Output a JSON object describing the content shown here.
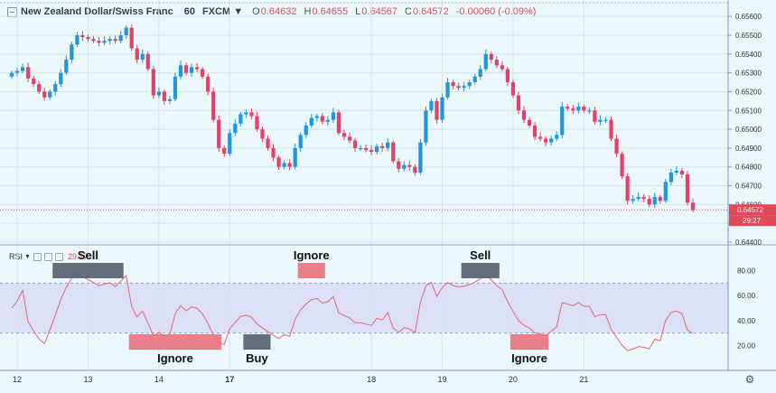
{
  "header": {
    "symbol": "New Zealand Dollar/Swiss Franc",
    "timeframe": "60",
    "exchange": "FXCM",
    "open_label": "O",
    "open": "0.64632",
    "high_label": "H",
    "high": "0.64655",
    "low_label": "L",
    "low": "0.64567",
    "close_label": "C",
    "close": "0.64572",
    "change": "-0.00060 (-0.09%)"
  },
  "rsi_panel": {
    "label": "RSI",
    "value": "29.17"
  },
  "colors": {
    "up": "#2196d8",
    "down": "#e0436a",
    "rsi_line": "#e96676",
    "rsi_band": "#d9dcf6",
    "sell_box": "#565c6b",
    "ignore_box": "#ec6f7d",
    "price_line": "#e04a5b"
  },
  "chart_data": [
    {
      "type": "candlestick",
      "title": "New Zealand Dollar/Swiss Franc",
      "x_ticks": [
        "12",
        "13",
        "14",
        "17",
        "18",
        "19",
        "20",
        "21"
      ],
      "y_ticks": [
        "0.65600",
        "0.65500",
        "0.65400",
        "0.65300",
        "0.65200",
        "0.65100",
        "0.65000",
        "0.64900",
        "0.64800",
        "0.64700",
        "0.64600",
        "0.64500",
        "0.64400"
      ],
      "ylim": [
        0.644,
        0.6562
      ],
      "grid": true,
      "last_price": "0.64572",
      "countdown": "29:27",
      "close_series": [
        0.653,
        0.6531,
        0.6533,
        0.6527,
        0.6524,
        0.652,
        0.6517,
        0.652,
        0.6524,
        0.653,
        0.6537,
        0.6545,
        0.655,
        0.6549,
        0.6548,
        0.6547,
        0.6546,
        0.6547,
        0.6548,
        0.6547,
        0.655,
        0.6554,
        0.6543,
        0.6537,
        0.654,
        0.6532,
        0.6518,
        0.652,
        0.6515,
        0.6516,
        0.6528,
        0.6534,
        0.653,
        0.6533,
        0.6532,
        0.6528,
        0.652,
        0.6505,
        0.649,
        0.6487,
        0.6498,
        0.6503,
        0.6508,
        0.6509,
        0.6507,
        0.65,
        0.6495,
        0.649,
        0.6485,
        0.648,
        0.6482,
        0.648,
        0.649,
        0.6497,
        0.6502,
        0.6506,
        0.6507,
        0.6504,
        0.6505,
        0.6509,
        0.6498,
        0.6496,
        0.6494,
        0.649,
        0.649,
        0.6489,
        0.6488,
        0.6491,
        0.649,
        0.6493,
        0.6483,
        0.6479,
        0.6481,
        0.648,
        0.6477,
        0.6493,
        0.651,
        0.6515,
        0.6505,
        0.6517,
        0.6525,
        0.6523,
        0.6522,
        0.6523,
        0.6525,
        0.6528,
        0.6532,
        0.654,
        0.6537,
        0.6534,
        0.6532,
        0.6525,
        0.6518,
        0.651,
        0.6505,
        0.6502,
        0.6496,
        0.6495,
        0.6493,
        0.6495,
        0.6497,
        0.6512,
        0.6511,
        0.651,
        0.6512,
        0.651,
        0.651,
        0.6504,
        0.6505,
        0.6505,
        0.6495,
        0.6487,
        0.6475,
        0.6462,
        0.6463,
        0.6464,
        0.6463,
        0.646,
        0.6464,
        0.6462,
        0.6472,
        0.6477,
        0.6478,
        0.6476,
        0.6461,
        0.6457
      ]
    },
    {
      "type": "line",
      "title": "RSI",
      "y_ticks": [
        "80.00",
        "60.00",
        "40.00",
        "20.00"
      ],
      "ylim": [
        0,
        100
      ],
      "band": [
        30,
        70
      ],
      "annotations": [
        {
          "label": "Sell",
          "kind": "sell",
          "start_index": 8,
          "end_index": 20,
          "level": "overbought"
        },
        {
          "label": "Ignore",
          "kind": "ignore",
          "start_index": 22,
          "end_index": 38,
          "level": "oversold"
        },
        {
          "label": "Buy",
          "kind": "buy",
          "start_index": 43,
          "end_index": 47,
          "level": "oversold"
        },
        {
          "label": "Ignore",
          "kind": "ignore",
          "start_index": 53,
          "end_index": 57,
          "level": "overbought"
        },
        {
          "label": "Sell",
          "kind": "sell",
          "start_index": 83,
          "end_index": 89,
          "level": "overbought"
        },
        {
          "label": "Ignore",
          "kind": "ignore",
          "start_index": 92,
          "end_index": 98,
          "level": "oversold"
        }
      ]
    }
  ]
}
